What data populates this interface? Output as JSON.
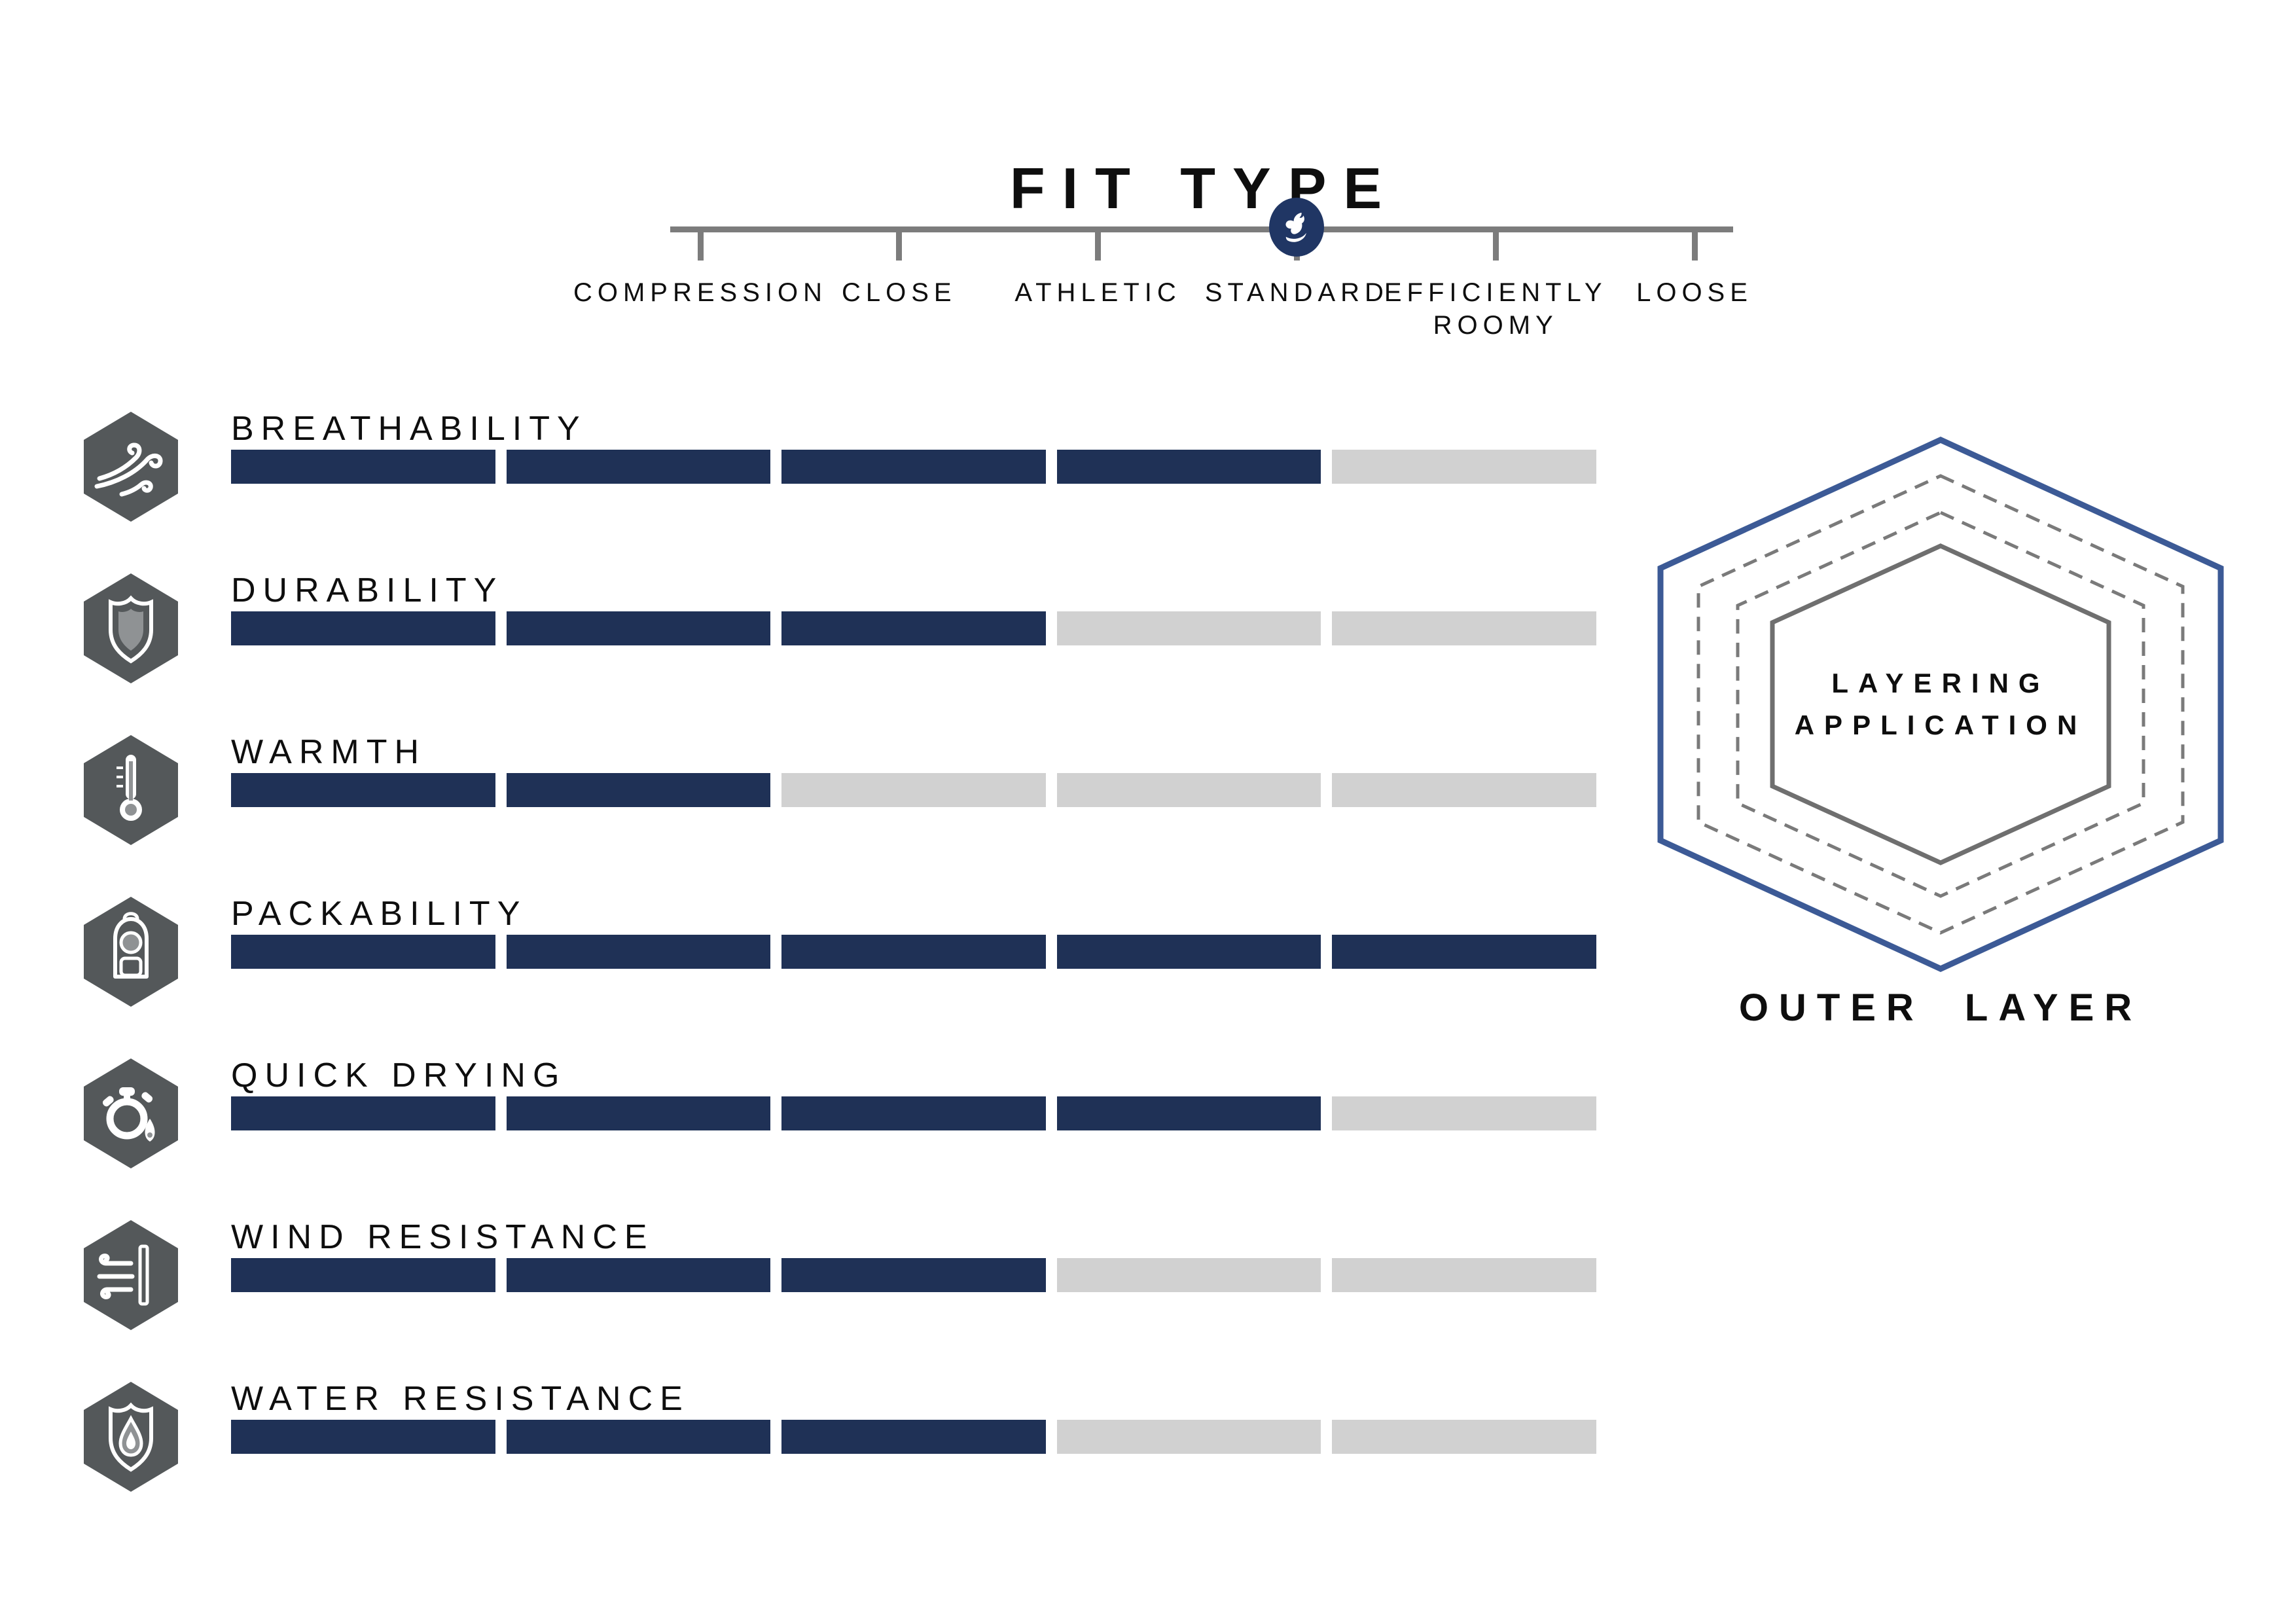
{
  "colors": {
    "navy": "#1f3156",
    "marker": "#203664",
    "bar_empty": "#d1d1d1",
    "icon_bg": "#54585a",
    "icon_inner": "#8f9294",
    "line": "#7c7c7c",
    "hex_outer": "#3c5a96",
    "hex_dashed": "#7a7a7a",
    "hex_inner": "#6f6f6f"
  },
  "fit_type": {
    "title": "FIT TYPE",
    "selected": "STANDARD",
    "marker_icon": "brand-bird-icon",
    "options": [
      {
        "label": "COMPRESSION",
        "selected": false
      },
      {
        "label": "CLOSE",
        "selected": false
      },
      {
        "label": "ATHLETIC",
        "selected": false
      },
      {
        "label": "STANDARD",
        "selected": true
      },
      {
        "label": "EFFICIENTLY ROOMY",
        "lines": [
          "EFFICIENTLY",
          "ROOMY"
        ],
        "selected": false
      },
      {
        "label": "LOOSE",
        "selected": false
      }
    ]
  },
  "attributes": [
    {
      "label": "BREATHABILITY",
      "icon": "wind-icon",
      "rating": 4,
      "max": 5
    },
    {
      "label": "DURABILITY",
      "icon": "shield-icon",
      "rating": 3,
      "max": 5
    },
    {
      "label": "WARMTH",
      "icon": "thermometer-icon",
      "rating": 2,
      "max": 5
    },
    {
      "label": "PACKABILITY",
      "icon": "backpack-icon",
      "rating": 5,
      "max": 5
    },
    {
      "label": "QUICK DRYING",
      "icon": "stopwatch-icon",
      "rating": 4,
      "max": 5
    },
    {
      "label": "WIND RESISTANCE",
      "icon": "wind-pole-icon",
      "rating": 3,
      "max": 5
    },
    {
      "label": "WATER RESISTANCE",
      "icon": "water-shield-icon",
      "rating": 3,
      "max": 5
    }
  ],
  "layering": {
    "title_lines": [
      "LAYERING",
      "APPLICATION"
    ],
    "caption": "OUTER LAYER"
  },
  "chart_data": {
    "type": "bar",
    "title": "FIT TYPE",
    "categories": [
      "BREATHABILITY",
      "DURABILITY",
      "WARMTH",
      "PACKABILITY",
      "QUICK DRYING",
      "WIND RESISTANCE",
      "WATER RESISTANCE"
    ],
    "values": [
      4,
      3,
      2,
      5,
      4,
      3,
      3
    ],
    "value_max": 5,
    "segments_per_bar": 5,
    "fit_scale": {
      "options": [
        "COMPRESSION",
        "CLOSE",
        "ATHLETIC",
        "STANDARD",
        "EFFICIENTLY ROOMY",
        "LOOSE"
      ],
      "selected": "STANDARD"
    },
    "layering_application": "OUTER LAYER"
  }
}
